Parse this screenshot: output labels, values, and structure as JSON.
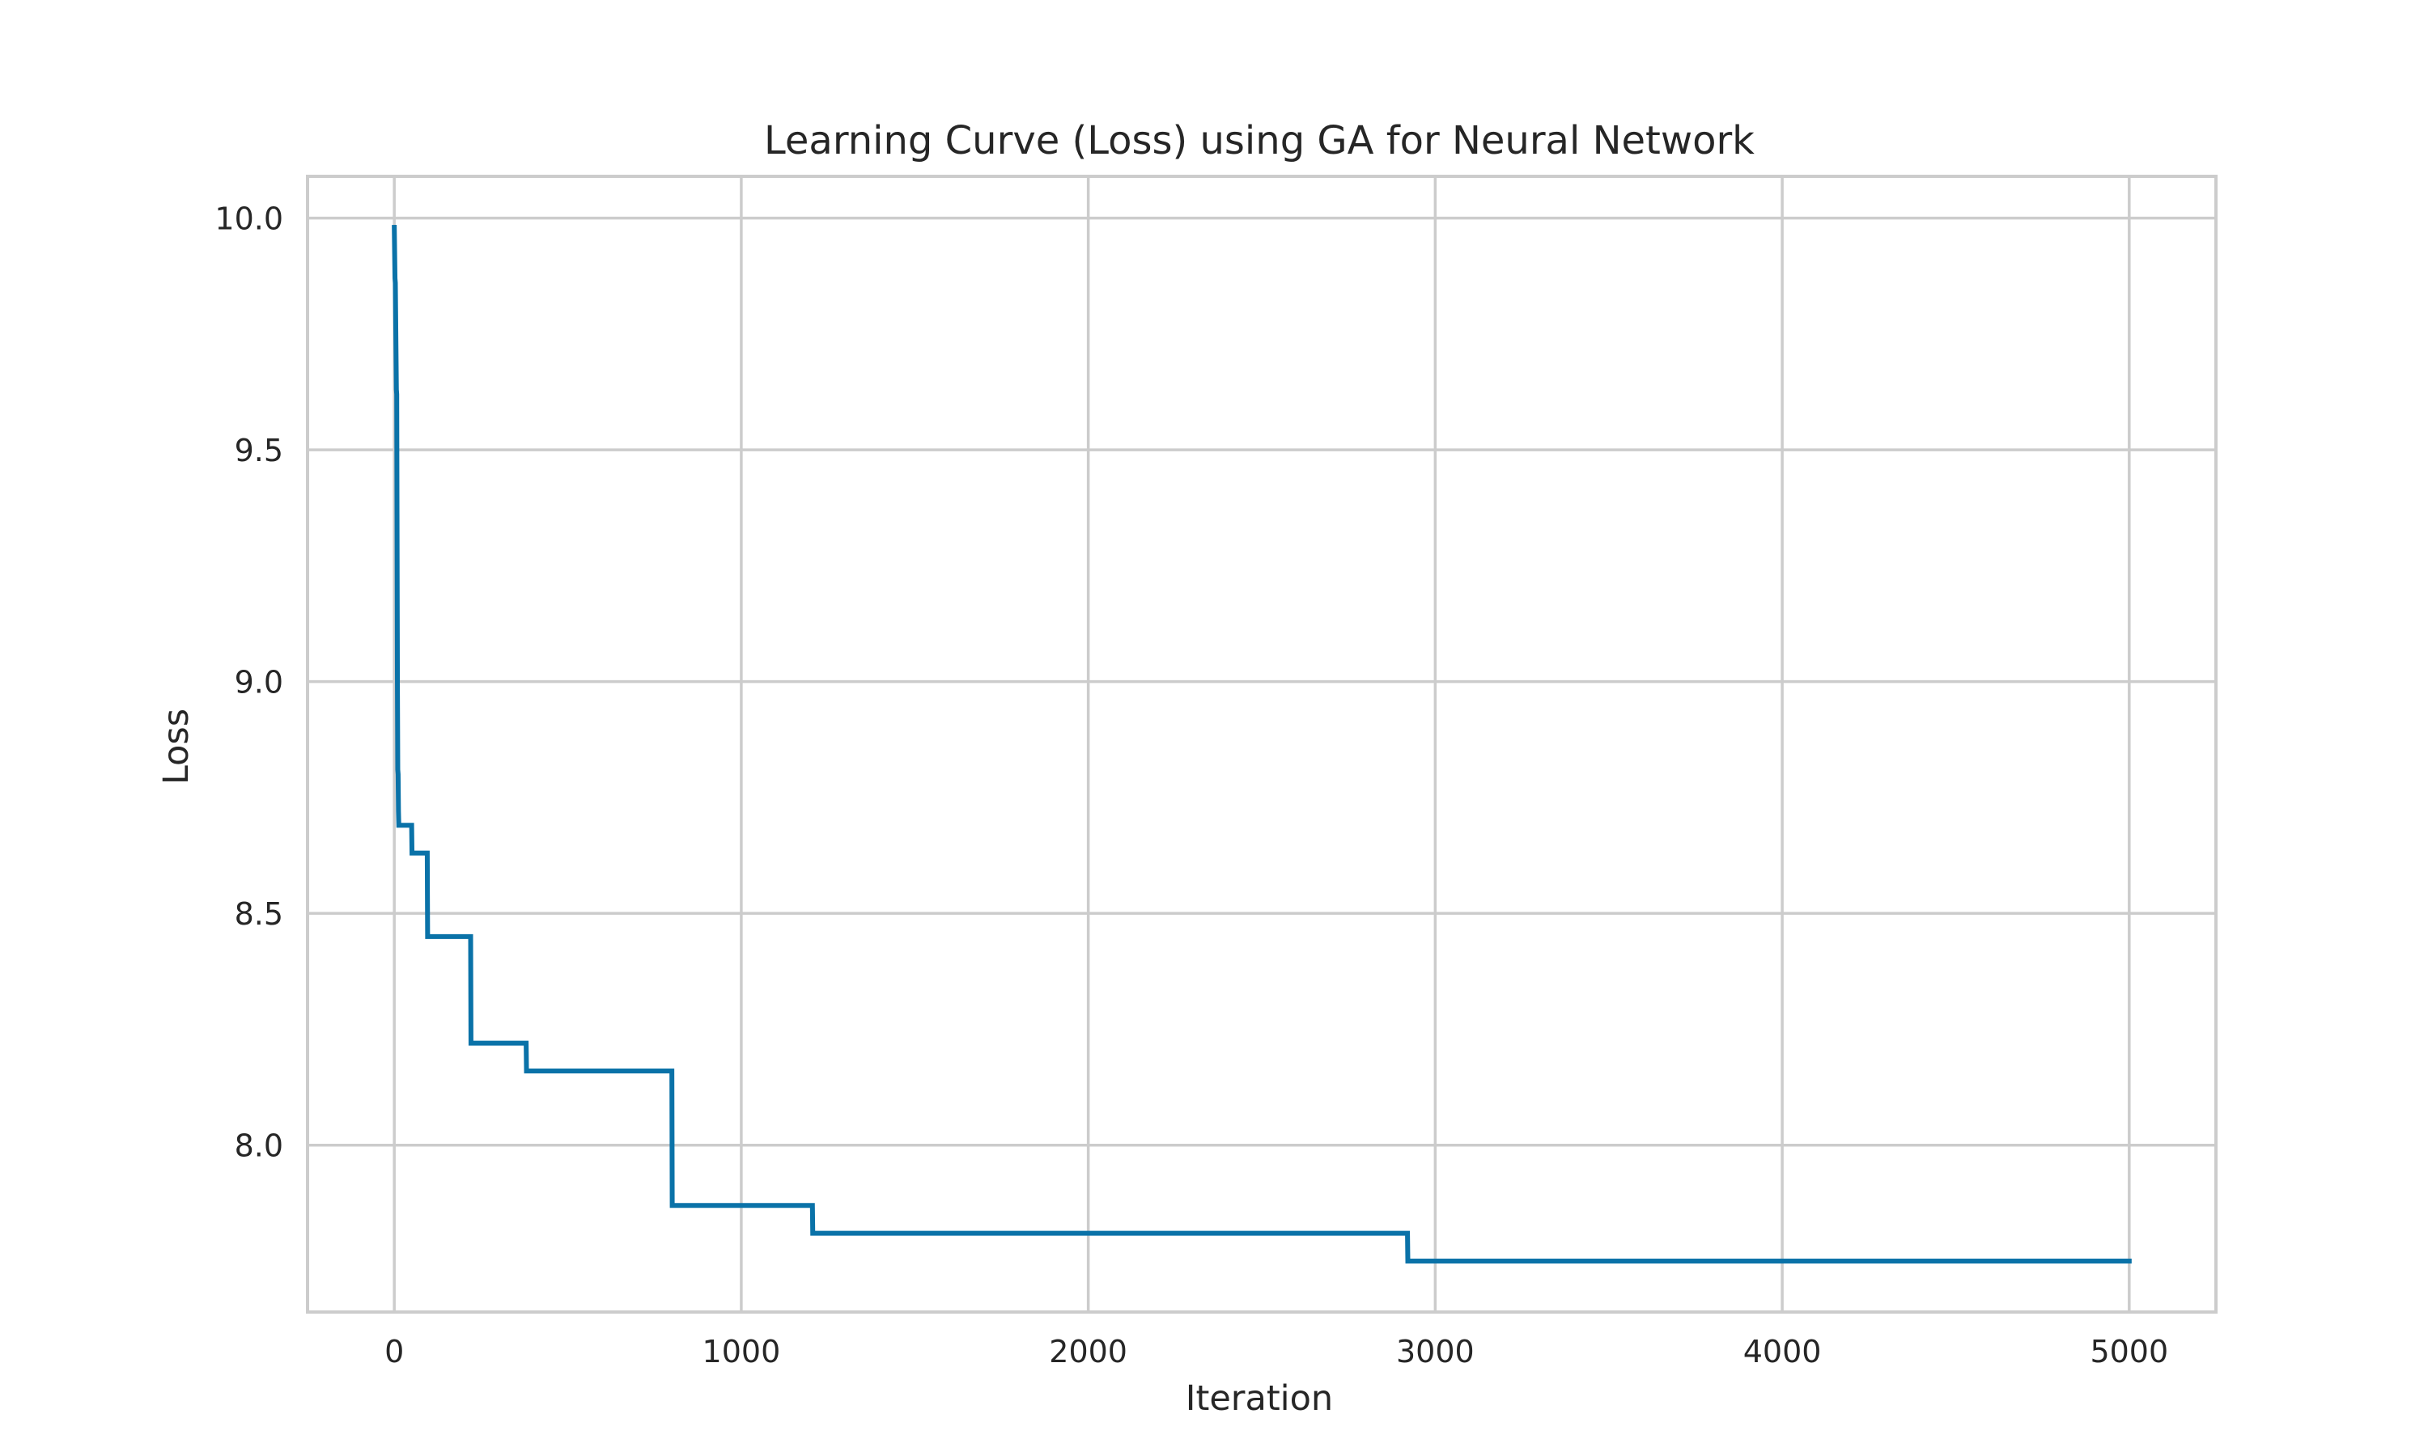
{
  "chart_data": {
    "type": "line",
    "line_style": "step",
    "title": "Learning Curve (Loss) using GA for Neural Network",
    "xlabel": "Iteration",
    "ylabel": "Loss",
    "xlim": [
      -250,
      5250
    ],
    "ylim": [
      7.64,
      10.09
    ],
    "xticks": [
      0,
      1000,
      2000,
      3000,
      4000,
      5000
    ],
    "xtick_labels": [
      "0",
      "1000",
      "2000",
      "3000",
      "4000",
      "5000"
    ],
    "yticks": [
      8.0,
      8.5,
      9.0,
      9.5,
      10.0
    ],
    "ytick_labels": [
      "8.0",
      "8.5",
      "9.0",
      "9.5",
      "10.0"
    ],
    "grid": true,
    "series": [
      {
        "color": "#0a72a8",
        "x": [
          0,
          2,
          3,
          6,
          7,
          9,
          10,
          11,
          12,
          13,
          14,
          50,
          51,
          95,
          96,
          220,
          221,
          380,
          381,
          800,
          801,
          1205,
          1206,
          2920,
          2921,
          5000
        ],
        "y": [
          9.98,
          9.87,
          9.86,
          9.63,
          9.62,
          9.0,
          8.81,
          8.8,
          8.72,
          8.69,
          8.69,
          8.69,
          8.63,
          8.63,
          8.45,
          8.45,
          8.22,
          8.22,
          8.16,
          8.16,
          7.87,
          7.87,
          7.81,
          7.81,
          7.75,
          7.75
        ]
      }
    ]
  }
}
